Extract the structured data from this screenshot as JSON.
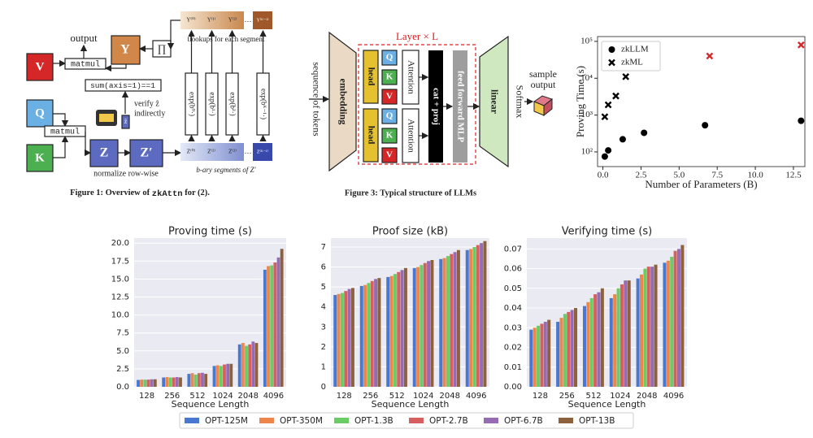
{
  "figure1": {
    "output": "output",
    "v": "V",
    "y": "Y",
    "prod": "∏",
    "q": "Q",
    "k": "K",
    "z": "Z",
    "z_prime": "Z′",
    "matmul_top": "matmul",
    "matmul_bottom": "matmul",
    "sum_check": "sum(axis=1)==1",
    "z_hat": "ẑ",
    "verify": [
      "verify ẑ",
      "indirectly"
    ],
    "normalize": "normalize row-wise",
    "lookups": "tlookups for each segment",
    "y_segments": [
      "Y⁽⁰⁾",
      "Y⁽¹⁾",
      "Y⁽²⁾",
      "…",
      "Y⁽ᴷ⁻¹⁾"
    ],
    "exp_labels": [
      "exp(b⁰·)",
      "exp(b¹·)",
      "exp(b²·)",
      "exp(bᴷ⁻¹·)"
    ],
    "z_segments": [
      "Z⁽⁰⁾",
      "Z⁽¹⁾",
      "Z⁽²⁾",
      "…",
      "Z⁽ᴷ⁻¹⁾"
    ],
    "segments_caption": "b-ary segments of Z′",
    "caption": [
      "Figure 1: Overview of ",
      "zkAttn",
      " for (2)."
    ]
  },
  "figure3": {
    "tokens": "sequence of tokens",
    "embedding": "embedding",
    "layer": "Layer × L",
    "heads": [
      "head",
      "head"
    ],
    "qkv_top": [
      "Q",
      "K",
      "V"
    ],
    "qkv_bottom": [
      "Q",
      "K",
      "V"
    ],
    "attention": [
      "Attention",
      "Attention"
    ],
    "cat_proj": "cat + proj",
    "mlp": "feed forward MLP",
    "linear": "linear",
    "softmax": "Softmax",
    "sample": [
      "sample",
      "output"
    ],
    "caption": "Figure 3: Typical structure of LLMs"
  },
  "chart_data": [
    {
      "type": "scatter",
      "log_y": true,
      "xlabel": "Number of Parameters (B)",
      "ylabel": "Proving Time (s)",
      "xlim": [
        -0.35,
        13.25
      ],
      "ylim": [
        40,
        135000
      ],
      "xticks": [
        {
          "value": 0,
          "label": "0.0"
        },
        {
          "value": 2.5,
          "label": "2.5"
        },
        {
          "value": 5,
          "label": "5.0"
        },
        {
          "value": 7.5,
          "label": "7.5"
        },
        {
          "value": 10,
          "label": "10.0"
        },
        {
          "value": 12.5,
          "label": "12.5"
        }
      ],
      "yticks": [
        {
          "value": 100,
          "label": "10²"
        },
        {
          "value": 1000,
          "label": "10³"
        },
        {
          "value": 10000,
          "label": "10⁴"
        },
        {
          "value": 100000,
          "label": "10⁵"
        }
      ],
      "legend": "upper left",
      "series": [
        {
          "name": "zkLLM",
          "marker": "circle",
          "color": "#000000",
          "x": [
            0.125,
            0.35,
            1.3,
            2.7,
            6.7,
            13
          ],
          "values": [
            75,
            110,
            220,
            330,
            530,
            700
          ]
        },
        {
          "name": "zkML",
          "marker": "x",
          "color": "#000000",
          "point_colors": [
            "#000000",
            "#000000",
            "#000000",
            "#000000",
            "#d62728",
            "#d62728"
          ],
          "x": [
            0.125,
            0.35,
            0.85,
            1.5,
            7,
            13
          ],
          "values": [
            900,
            1900,
            3300,
            11000,
            40000,
            80000
          ]
        }
      ]
    },
    {
      "type": "bar",
      "title": "Proving time (s)",
      "xlabel": "Sequence Length",
      "categories": [
        "128",
        "256",
        "512",
        "1024",
        "2048",
        "4096"
      ],
      "ylim": [
        0,
        20.7
      ],
      "yticks": [
        {
          "value": 0,
          "label": "0.0"
        },
        {
          "value": 2.5,
          "label": "2.5"
        },
        {
          "value": 5,
          "label": "5.0"
        },
        {
          "value": 7.5,
          "label": "7.5"
        },
        {
          "value": 10,
          "label": "10.0"
        },
        {
          "value": 12.5,
          "label": "12.5"
        },
        {
          "value": 15,
          "label": "15.0"
        },
        {
          "value": 17.5,
          "label": "17.5"
        },
        {
          "value": 20,
          "label": "20.0"
        }
      ],
      "grid": true,
      "legend": "lower center",
      "series": [
        {
          "name": "OPT-125M",
          "color": "#4878d0",
          "values": [
            0.95,
            1.3,
            1.8,
            2.9,
            5.9,
            16.3
          ]
        },
        {
          "name": "OPT-350M",
          "color": "#ee854a",
          "values": [
            1.0,
            1.35,
            1.9,
            3.0,
            6.1,
            16.8
          ]
        },
        {
          "name": "OPT-1.3B",
          "color": "#6acc64",
          "values": [
            1.0,
            1.3,
            1.7,
            2.9,
            5.7,
            16.9
          ]
        },
        {
          "name": "OPT-2.7B",
          "color": "#d65f5f",
          "values": [
            1.0,
            1.3,
            1.9,
            3.1,
            5.9,
            17.3
          ]
        },
        {
          "name": "OPT-6.7B",
          "color": "#956cb4",
          "values": [
            1.05,
            1.35,
            1.95,
            3.2,
            6.3,
            18.0
          ]
        },
        {
          "name": "OPT-13B",
          "color": "#8c613c",
          "values": [
            1.05,
            1.3,
            1.8,
            3.2,
            6.1,
            19.2
          ]
        }
      ]
    },
    {
      "type": "bar",
      "title": "Proof size (kB)",
      "xlabel": "Sequence Length",
      "categories": [
        "128",
        "256",
        "512",
        "1024",
        "2048",
        "4096"
      ],
      "ylim": [
        0,
        7.45
      ],
      "yticks": [
        0,
        1,
        2,
        3,
        4,
        5,
        6,
        7
      ],
      "grid": true,
      "series": [
        {
          "color": "#4878d0",
          "values": [
            4.6,
            5.05,
            5.5,
            5.95,
            6.4,
            6.85
          ]
        },
        {
          "color": "#ee854a",
          "values": [
            4.65,
            5.1,
            5.55,
            6.0,
            6.45,
            6.9
          ]
        },
        {
          "color": "#6acc64",
          "values": [
            4.7,
            5.2,
            5.65,
            6.1,
            6.55,
            7.0
          ]
        },
        {
          "color": "#d65f5f",
          "values": [
            4.8,
            5.3,
            5.75,
            6.2,
            6.65,
            7.1
          ]
        },
        {
          "color": "#956cb4",
          "values": [
            4.9,
            5.4,
            5.85,
            6.3,
            6.75,
            7.2
          ]
        },
        {
          "color": "#8c613c",
          "values": [
            4.95,
            5.45,
            5.95,
            6.35,
            6.85,
            7.3
          ]
        }
      ]
    },
    {
      "type": "bar",
      "title": "Verifying time (s)",
      "xlabel": "Sequence Length",
      "categories": [
        "128",
        "256",
        "512",
        "1024",
        "2048",
        "4096"
      ],
      "ylim": [
        0,
        0.0755
      ],
      "yticks": [
        {
          "value": 0,
          "label": "0.00"
        },
        {
          "value": 0.01,
          "label": "0.01"
        },
        {
          "value": 0.02,
          "label": "0.02"
        },
        {
          "value": 0.03,
          "label": "0.03"
        },
        {
          "value": 0.04,
          "label": "0.04"
        },
        {
          "value": 0.05,
          "label": "0.05"
        },
        {
          "value": 0.06,
          "label": "0.06"
        },
        {
          "value": 0.07,
          "label": "0.07"
        }
      ],
      "grid": true,
      "series": [
        {
          "color": "#4878d0",
          "values": [
            0.029,
            0.033,
            0.041,
            0.045,
            0.055,
            0.063
          ]
        },
        {
          "color": "#ee854a",
          "values": [
            0.03,
            0.035,
            0.043,
            0.047,
            0.057,
            0.064
          ]
        },
        {
          "color": "#6acc64",
          "values": [
            0.031,
            0.037,
            0.045,
            0.05,
            0.06,
            0.066
          ]
        },
        {
          "color": "#d65f5f",
          "values": [
            0.032,
            0.038,
            0.047,
            0.052,
            0.061,
            0.069
          ]
        },
        {
          "color": "#956cb4",
          "values": [
            0.033,
            0.039,
            0.048,
            0.054,
            0.061,
            0.07
          ]
        },
        {
          "color": "#8c613c",
          "values": [
            0.034,
            0.04,
            0.05,
            0.054,
            0.062,
            0.072
          ]
        }
      ]
    }
  ]
}
